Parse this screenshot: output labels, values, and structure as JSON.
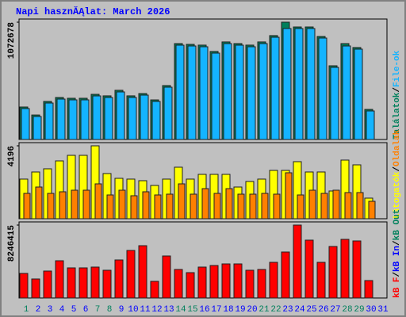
{
  "chart_data": [
    {
      "type": "bar",
      "title": "Napi hasznĂĄlat: March 2026",
      "ylim": [
        0,
        1072678
      ],
      "yticks": [
        1072678
      ],
      "legend_separator": "/",
      "series": [
        {
          "name": "Találatok",
          "color": "#00805c",
          "values": [
            297000,
            224000,
            348000,
            384000,
            377000,
            377000,
            413000,
            399000,
            450000,
            399000,
            420000,
            362000,
            493000,
            877000,
            870000,
            863000,
            805000,
            892000,
            877000,
            863000,
            892000,
            950000,
            1072678,
            1029000,
            1029000,
            942000,
            674000,
            877000,
            841000,
            275000,
            0
          ]
        },
        {
          "name": "File-ok",
          "color": "#14b4ff",
          "values": [
            282700,
            210200,
            333400,
            369600,
            362400,
            362400,
            398600,
            384100,
            434900,
            384100,
            405900,
            347900,
            478400,
            862500,
            855200,
            848000,
            790000,
            877000,
            862500,
            848000,
            877000,
            935000,
            1014700,
            1014700,
            1014700,
            927700,
            659600,
            855200,
            826300,
            260900,
            0
          ]
        }
      ]
    },
    {
      "type": "bar",
      "ylim": [
        0,
        4196
      ],
      "yticks": [
        4196
      ],
      "series": [
        {
          "name": "Látogatók",
          "color": "#ffff00",
          "values": [
            2281,
            2691,
            2873,
            3329,
            3649,
            3649,
            4196,
            2600,
            2326,
            2281,
            2189,
            1916,
            2281,
            2965,
            2281,
            2554,
            2554,
            2554,
            1824,
            2144,
            2281,
            2782,
            2782,
            3284,
            2691,
            2691,
            1596,
            3375,
            3101,
            1186,
            0
          ]
        },
        {
          "name": "Oldalak",
          "color": "#ff8000",
          "values": [
            1459,
            1824,
            1459,
            1551,
            1642,
            1642,
            2007,
            1368,
            1642,
            1323,
            1551,
            1368,
            1414,
            2007,
            1414,
            1733,
            1459,
            1733,
            1414,
            1414,
            1459,
            1414,
            2645,
            1368,
            1642,
            1459,
            1642,
            1505,
            1505,
            1003,
            0
          ]
        }
      ]
    },
    {
      "type": "bar",
      "ylim": [
        0,
        8246415
      ],
      "yticks": [
        8246415
      ],
      "series": [
        {
          "name": "kB F",
          "color": "#ff0000",
          "values": [
            2778690,
            2151240,
            3047590,
            4212845,
            3406130,
            3406130,
            3495765,
            3137225,
            4302480,
            5378100,
            5915910,
            1882335,
            4750655,
            3226860,
            2868320,
            3495765,
            3675035,
            3854305,
            3854305,
            3137225,
            3226860,
            4033575,
            5198830,
            8246415,
            6543355,
            4033575,
            5826275,
            6632990,
            6453720,
            1971970,
            0
          ]
        }
      ],
      "legend_extra": [
        {
          "name": "kB In",
          "color": "#0000ff"
        },
        {
          "name": "kB Out",
          "color": "#00805c"
        }
      ],
      "categories": [
        "1",
        "2",
        "3",
        "4",
        "5",
        "6",
        "7",
        "8",
        "9",
        "10",
        "11",
        "12",
        "13",
        "14",
        "15",
        "16",
        "17",
        "18",
        "19",
        "20",
        "21",
        "22",
        "23",
        "24",
        "25",
        "26",
        "27",
        "28",
        "29",
        "30",
        "31"
      ],
      "category_colors": [
        "#00805c",
        "#0000ff",
        "#0000ff",
        "#0000ff",
        "#0000ff",
        "#0000ff",
        "#00805c",
        "#00805c",
        "#0000ff",
        "#0000ff",
        "#0000ff",
        "#0000ff",
        "#0000ff",
        "#00805c",
        "#00805c",
        "#0000ff",
        "#0000ff",
        "#0000ff",
        "#0000ff",
        "#0000ff",
        "#00805c",
        "#00805c",
        "#0000ff",
        "#0000ff",
        "#0000ff",
        "#0000ff",
        "#0000ff",
        "#00805c",
        "#00805c",
        "#0000ff",
        "#0000ff"
      ]
    }
  ]
}
